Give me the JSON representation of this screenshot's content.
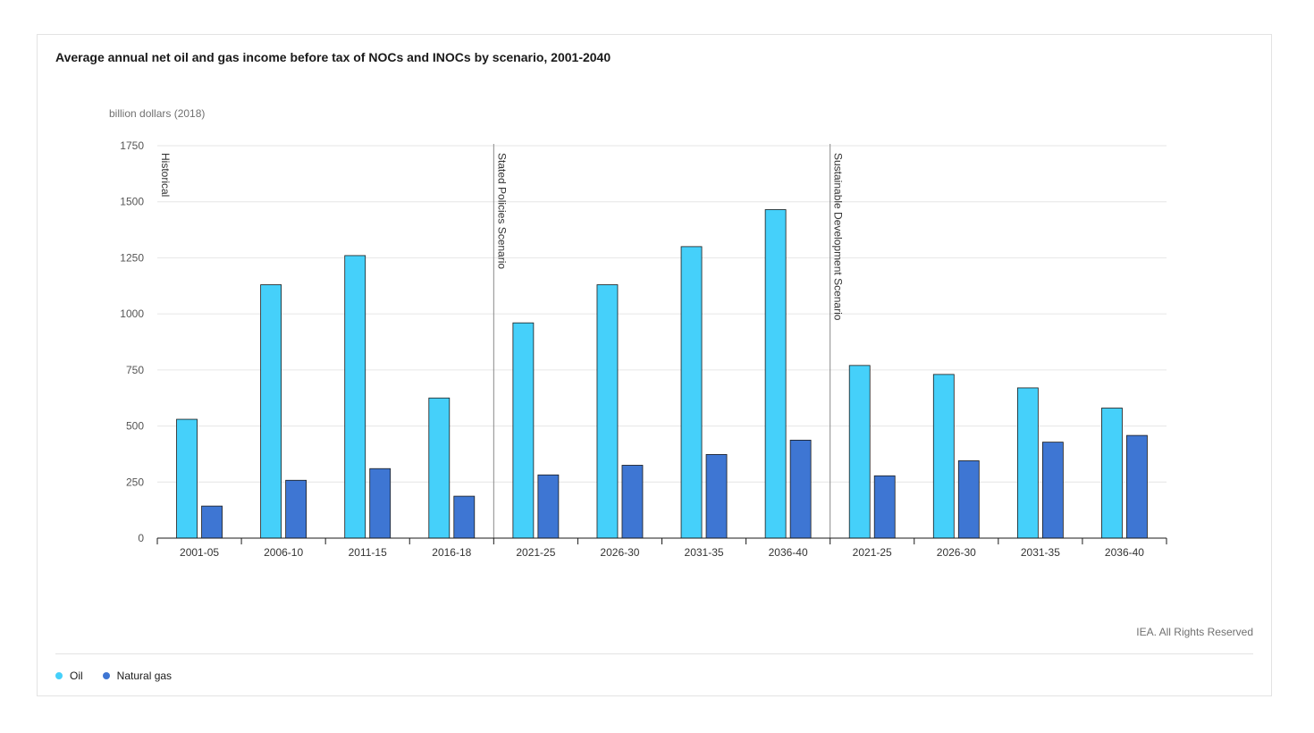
{
  "chart_data": {
    "type": "bar",
    "title": "Average annual net oil and gas income before tax of NOCs and INOCs by scenario, 2001-2040",
    "ylabel": "billion dollars (2018)",
    "xlabel": "",
    "ylim": [
      0,
      1750
    ],
    "yticks": [
      0,
      250,
      500,
      750,
      1000,
      1250,
      1500,
      1750
    ],
    "grid": true,
    "legend_position": "bottom-left",
    "categories": [
      "2001-05",
      "2006-10",
      "2011-15",
      "2016-18",
      "2021-25",
      "2026-30",
      "2031-35",
      "2036-40",
      "2021-25",
      "2026-30",
      "2031-35",
      "2036-40"
    ],
    "series": [
      {
        "name": "Oil",
        "color": "#45d0fa",
        "values": [
          530,
          1130,
          1260,
          625,
          960,
          1130,
          1300,
          1465,
          770,
          730,
          670,
          580
        ]
      },
      {
        "name": "Natural gas",
        "color": "#3e76d3",
        "values": [
          143,
          258,
          310,
          187,
          282,
          325,
          373,
          437,
          278,
          345,
          428,
          458
        ]
      }
    ],
    "annotations": [
      {
        "label": "Historical",
        "category_index": 0
      },
      {
        "label": "Stated Policies Scenario",
        "category_index": 4
      },
      {
        "label": "Sustainable Development Scenario",
        "category_index": 8
      }
    ]
  },
  "credit": "IEA. All Rights Reserved"
}
